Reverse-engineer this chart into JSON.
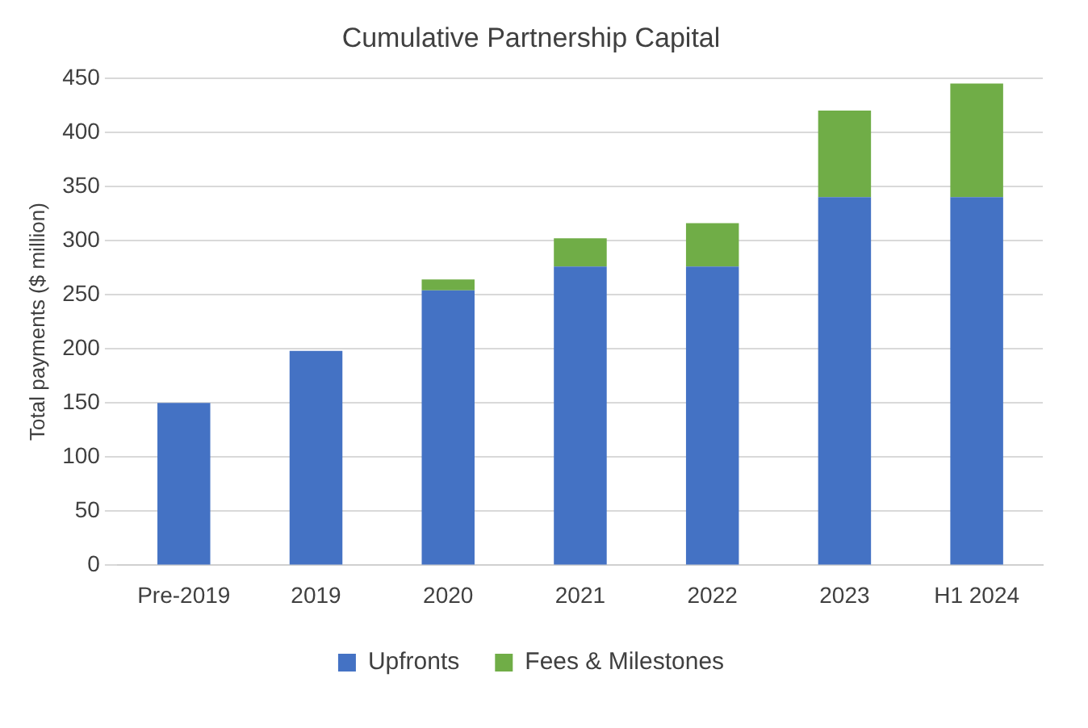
{
  "chart_data": {
    "type": "bar",
    "title": "Cumulative Partnership Capital",
    "ylabel": "Total payments ($ million)",
    "categories": [
      "Pre-2019",
      "2019",
      "2020",
      "2021",
      "2022",
      "2023",
      "H1 2024"
    ],
    "series": [
      {
        "name": "Upfronts",
        "color": "#4472c4",
        "values": [
          150,
          198,
          254,
          276,
          276,
          340,
          340
        ]
      },
      {
        "name": "Fees & Milestones",
        "color": "#70ad47",
        "values": [
          0,
          0,
          10,
          26,
          40,
          80,
          105
        ]
      }
    ],
    "stacked": true,
    "ylim": [
      0,
      450
    ],
    "yticks": [
      0,
      50,
      100,
      150,
      200,
      250,
      300,
      350,
      400,
      450
    ],
    "grid": "y",
    "legend": "bottom"
  }
}
